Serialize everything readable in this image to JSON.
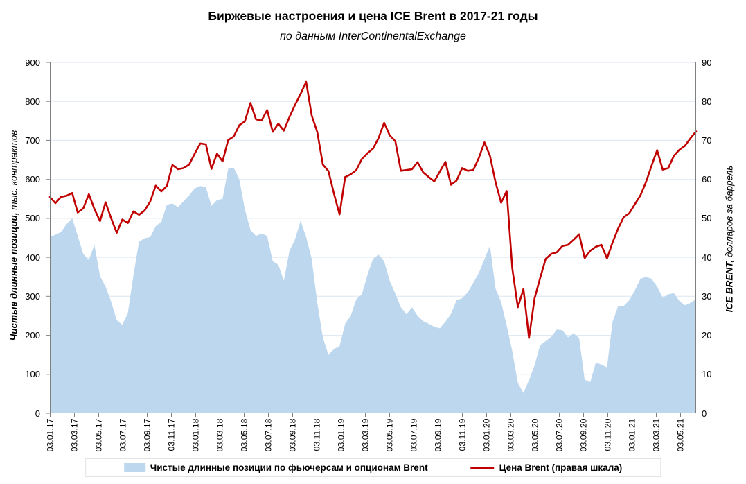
{
  "title": "Биржевые настроения и цена ICE Brent в 2017-21 годы",
  "subtitle": "по данным InterContinentalExchange",
  "left_axis": {
    "title_bold": "Чистые длинные позиции,",
    "title_rest": " тыс. контрактов",
    "min": 0,
    "max": 900,
    "step": 100
  },
  "right_axis": {
    "title_bold": "ICE BRENT,",
    "title_rest": " долларов за баррель",
    "min": 0,
    "max": 90,
    "step": 10
  },
  "legend": {
    "items": [
      {
        "label": "Чистые длинные позиции по фьючерсам и опционам Brent",
        "type": "area",
        "color": "#BDD7EE"
      },
      {
        "label": "Цена Brent (правая шкала)",
        "type": "line",
        "color": "#C00000"
      }
    ]
  },
  "colors": {
    "area_fill": "#BDD7EE",
    "line_stroke": "#C00000",
    "gridline": "#DCE6F2",
    "axis_spine": "#808080",
    "text": "#000000"
  },
  "chart_data": {
    "type": "area+line combo, dual axis",
    "title": "Биржевые настроения и цена ICE Brent в 2017-21 годы",
    "subtitle": "по данным InterContinentalExchange",
    "x_start": "03.01.2017",
    "x_end": "08.06.2021",
    "sampling": "biweekly (every 2 weeks), 117 points per series",
    "x_tick_labels": [
      "03.01.17",
      "03.03.17",
      "03.05.17",
      "03.07.17",
      "03.09.17",
      "03.11.17",
      "03.01.18",
      "03.03.18",
      "03.05.18",
      "03.07.18",
      "03.09.18",
      "03.11.18",
      "03.01.19",
      "03.03.19",
      "03.05.19",
      "03.07.19",
      "03.09.19",
      "03.11.19",
      "03.01.20",
      "03.03.20",
      "03.05.20",
      "03.07.20",
      "03.09.20",
      "03.11.20",
      "03.01.21",
      "03.03.21",
      "03.05.21"
    ],
    "x_tick_spacing_months": 2,
    "left_ylim": [
      0,
      900
    ],
    "right_ylim": [
      0,
      90
    ],
    "grid": "horizontal major gridlines only",
    "legend_position": "bottom",
    "series": [
      {
        "name": "Чистые длинные позиции по фьючерсам и опционам Brent",
        "type": "area",
        "axis": "left",
        "unit": "тыс. контрактов",
        "color": "#BDD7EE",
        "values": [
          452,
          458,
          465,
          485,
          500,
          455,
          408,
          393,
          432,
          352,
          325,
          286,
          239,
          227,
          257,
          354,
          440,
          449,
          452,
          480,
          491,
          535,
          538,
          529,
          544,
          559,
          577,
          583,
          580,
          532,
          547,
          550,
          627,
          630,
          600,
          523,
          470,
          455,
          461,
          455,
          390,
          381,
          340,
          417,
          446,
          494,
          452,
          396,
          283,
          194,
          150,
          165,
          172,
          230,
          250,
          292,
          305,
          355,
          396,
          407,
          390,
          340,
          307,
          272,
          254,
          272,
          250,
          236,
          230,
          222,
          218,
          235,
          255,
          290,
          295,
          310,
          335,
          360,
          395,
          430,
          320,
          285,
          225,
          159,
          78,
          52,
          85,
          123,
          175,
          185,
          196,
          215,
          213,
          195,
          205,
          193,
          86,
          80,
          130,
          125,
          118,
          235,
          275,
          275,
          290,
          315,
          345,
          350,
          345,
          325,
          296,
          305,
          308,
          288,
          277,
          283,
          293
        ]
      },
      {
        "name": "Цена Brent (правая шкала)",
        "type": "line",
        "axis": "right",
        "unit": "долларов за баррель",
        "color": "#C00000",
        "values": [
          55.5,
          53.9,
          55.5,
          55.8,
          56.5,
          51.5,
          52.6,
          56.2,
          52.4,
          49.3,
          54.1,
          50.0,
          46.3,
          49.7,
          48.8,
          51.8,
          50.9,
          52.0,
          54.3,
          58.4,
          56.9,
          58.3,
          63.7,
          62.6,
          62.9,
          63.8,
          66.6,
          69.2,
          69.0,
          62.7,
          66.6,
          64.6,
          70.1,
          71.0,
          73.9,
          74.9,
          79.6,
          75.4,
          75.1,
          77.8,
          72.2,
          74.3,
          72.5,
          76.0,
          79.1,
          81.9,
          85.0,
          76.4,
          72.1,
          63.8,
          62.1,
          56.3,
          51.0,
          60.6,
          61.3,
          62.4,
          65.2,
          66.7,
          67.9,
          70.6,
          74.5,
          71.3,
          69.8,
          62.2,
          62.4,
          62.6,
          64.4,
          61.8,
          60.6,
          59.5,
          62.0,
          64.5,
          58.6,
          59.7,
          62.9,
          62.2,
          62.4,
          65.5,
          69.5,
          66.0,
          59.3,
          54.0,
          57.0,
          37.2,
          27.2,
          31.9,
          19.3,
          29.5,
          34.7,
          39.6,
          40.9,
          41.3,
          42.9,
          43.2,
          44.5,
          45.9,
          39.8,
          41.7,
          42.7,
          43.2,
          39.7,
          43.8,
          47.4,
          50.3,
          51.3,
          53.6,
          55.9,
          59.3,
          63.5,
          67.5,
          62.5,
          62.9,
          66.0,
          67.6,
          68.6,
          70.6,
          72.3
        ]
      }
    ]
  }
}
